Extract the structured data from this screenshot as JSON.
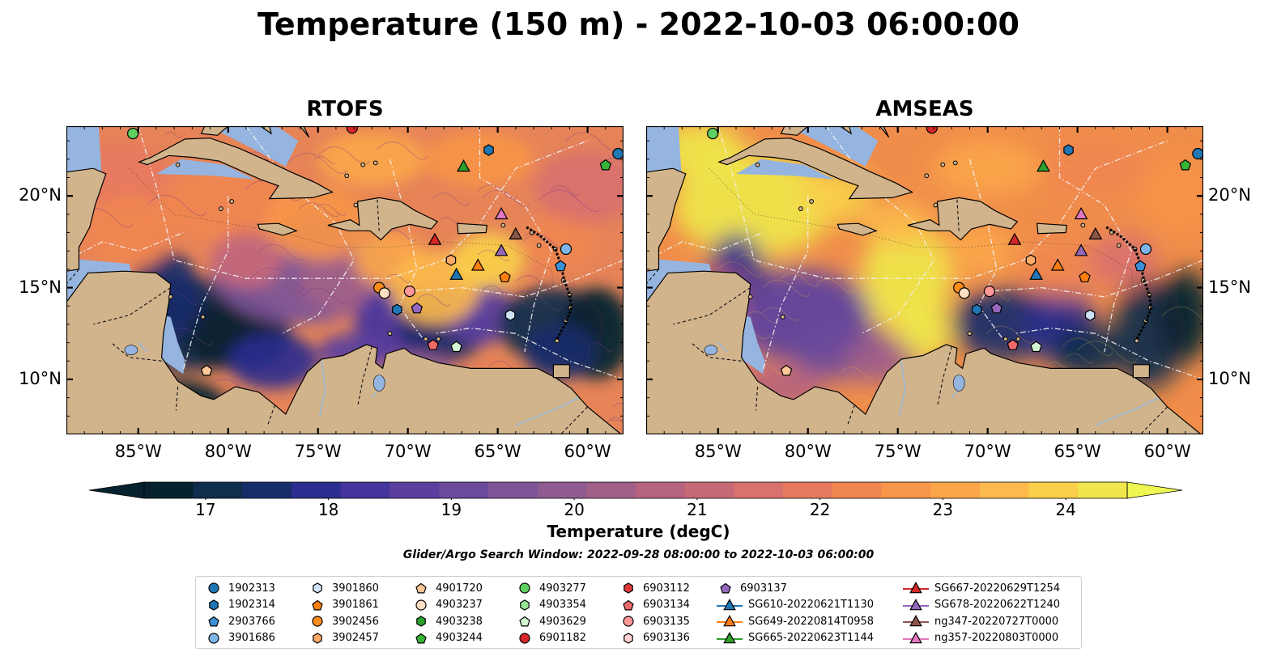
{
  "title": "Temperature (150 m) - 2022-10-03 06:00:00",
  "panels": [
    {
      "title": "RTOFS",
      "style": "rtofs"
    },
    {
      "title": "AMSEAS",
      "style": "amseas"
    }
  ],
  "lat_ticks": [
    {
      "lat": 20,
      "label": "20°N"
    },
    {
      "lat": 15,
      "label": "15°N"
    },
    {
      "lat": 10,
      "label": "10°N"
    }
  ],
  "lon_ticks": [
    {
      "lon": -85,
      "label": "85°W"
    },
    {
      "lon": -80,
      "label": "80°W"
    },
    {
      "lon": -75,
      "label": "75°W"
    },
    {
      "lon": -70,
      "label": "70°W"
    },
    {
      "lon": -65,
      "label": "65°W"
    },
    {
      "lon": -60,
      "label": "60°W"
    }
  ],
  "map_extent": {
    "lon_min": -89,
    "lon_max": -58,
    "lat_min": 7,
    "lat_max": 23.8
  },
  "colorbar": {
    "label": "Temperature (degC)",
    "min": 16.5,
    "max": 24.5,
    "ticks": [
      "17",
      "18",
      "19",
      "20",
      "21",
      "22",
      "23",
      "24"
    ],
    "colors": [
      "#06222f",
      "#0f2d4d",
      "#172d6a",
      "#2b2e8e",
      "#44349c",
      "#5a3f9f",
      "#6b4a9c",
      "#7c5497",
      "#8f5b90",
      "#a25f88",
      "#b6637f",
      "#c86978",
      "#d9716c",
      "#e77a5e",
      "#f08650",
      "#f79548",
      "#fba64a",
      "#fcb94c",
      "#f9cf4b",
      "#efe74b"
    ],
    "over_color": "#eef751",
    "under_color": "#06222f"
  },
  "search_window": "Glider/Argo Search Window: 2022-09-28 08:00:00 to 2022-10-03 06:00:00",
  "legend": [
    {
      "label": "1902313",
      "marker": "circle",
      "color": "#1f77b4"
    },
    {
      "label": "1902314",
      "marker": "hexagon",
      "color": "#1f77b4"
    },
    {
      "label": "2903766",
      "marker": "pentagon",
      "color": "#3b8fd6"
    },
    {
      "label": "3901686",
      "marker": "circle",
      "color": "#7fb6e8"
    },
    {
      "label": "3901860",
      "marker": "hexagon",
      "color": "#cfe3f7"
    },
    {
      "label": "3901861",
      "marker": "pentagon",
      "color": "#ff7f0e"
    },
    {
      "label": "3902456",
      "marker": "circle",
      "color": "#ff8c1a"
    },
    {
      "label": "3902457",
      "marker": "hexagon",
      "color": "#ffab66"
    },
    {
      "label": "4901720",
      "marker": "pentagon",
      "color": "#ffc899"
    },
    {
      "label": "4903237",
      "marker": "circle",
      "color": "#ffe0c2"
    },
    {
      "label": "4903238",
      "marker": "hexagon",
      "color": "#2ca02c"
    },
    {
      "label": "4903244",
      "marker": "pentagon",
      "color": "#37b537"
    },
    {
      "label": "4903277",
      "marker": "circle",
      "color": "#5fcf5f"
    },
    {
      "label": "4903354",
      "marker": "hexagon",
      "color": "#98e698"
    },
    {
      "label": "4903629",
      "marker": "pentagon",
      "color": "#d2f5d2"
    },
    {
      "label": "6901182",
      "marker": "circle",
      "color": "#d62728"
    },
    {
      "label": "6903112",
      "marker": "hexagon",
      "color": "#e0393a"
    },
    {
      "label": "6903134",
      "marker": "pentagon",
      "color": "#f06a6a"
    },
    {
      "label": "6903135",
      "marker": "circle",
      "color": "#ff9896"
    },
    {
      "label": "6903136",
      "marker": "hexagon",
      "color": "#ffd1d0"
    },
    {
      "label": "6903137",
      "marker": "pentagon",
      "color": "#9467bd"
    },
    {
      "label": "SG610-20220621T1130",
      "marker": "triangle-line",
      "color": "#1f77b4"
    },
    {
      "label": "SG649-20220814T0958",
      "marker": "triangle-line",
      "color": "#ff7f0e"
    },
    {
      "label": "SG665-20220623T1144",
      "marker": "triangle-line",
      "color": "#2ca02c"
    },
    {
      "label": "SG667-20220629T1254",
      "marker": "triangle-line",
      "color": "#d62728"
    },
    {
      "label": "SG678-20220622T1240",
      "marker": "triangle-line",
      "color": "#9467bd"
    },
    {
      "label": "ng347-20220727T0000",
      "marker": "triangle-line",
      "color": "#8c564b"
    },
    {
      "label": "ng357-20220803T0000",
      "marker": "triangle-line",
      "color": "#e377c2"
    }
  ],
  "observations": [
    {
      "label": "4903277",
      "lon": -85.3,
      "lat": 23.4,
      "marker": "circle",
      "color": "#5fcf5f"
    },
    {
      "label": "6901182",
      "lon": -73.1,
      "lat": 23.7,
      "marker": "circle",
      "color": "#d62728"
    },
    {
      "label": "1902314",
      "lon": -65.5,
      "lat": 22.5,
      "marker": "hexagon",
      "color": "#1f77b4"
    },
    {
      "label": "SG665-20220623T1144",
      "lon": -66.9,
      "lat": 21.6,
      "marker": "triangle",
      "color": "#2ca02c"
    },
    {
      "label": "4903244",
      "lon": -59.0,
      "lat": 21.7,
      "marker": "pentagon",
      "color": "#37b537"
    },
    {
      "label": "1902313",
      "lon": -58.3,
      "lat": 22.3,
      "marker": "circle",
      "color": "#1f77b4"
    },
    {
      "label": "ng357-20220803T0000",
      "lon": -64.8,
      "lat": 19.0,
      "marker": "triangle",
      "color": "#e377c2"
    },
    {
      "label": "ng347-20220727T0000",
      "lon": -64.0,
      "lat": 17.9,
      "marker": "triangle",
      "color": "#8c564b"
    },
    {
      "label": "SG667-20220629T1254",
      "lon": -68.5,
      "lat": 17.6,
      "marker": "triangle",
      "color": "#d62728"
    },
    {
      "label": "SG678-20220622T1240",
      "lon": -64.8,
      "lat": 17.0,
      "marker": "triangle",
      "color": "#9467bd"
    },
    {
      "label": "3901686",
      "lon": -61.2,
      "lat": 17.1,
      "marker": "circle",
      "color": "#7fb6e8"
    },
    {
      "label": "2903766",
      "lon": -61.5,
      "lat": 16.2,
      "marker": "pentagon",
      "color": "#3b8fd6"
    },
    {
      "label": "3902457",
      "lon": -67.6,
      "lat": 16.5,
      "marker": "hexagon",
      "color": "#ffab66"
    },
    {
      "label": "SG649-20220814T0958",
      "lon": -66.1,
      "lat": 16.2,
      "marker": "triangle",
      "color": "#ff7f0e"
    },
    {
      "label": "SG610-20220621T1130",
      "lon": -67.3,
      "lat": 15.7,
      "marker": "triangle",
      "color": "#1f77b4"
    },
    {
      "label": "3901861",
      "lon": -64.6,
      "lat": 15.6,
      "marker": "pentagon",
      "color": "#ff7f0e"
    },
    {
      "label": "3902456",
      "lon": -71.6,
      "lat": 15.0,
      "marker": "circle",
      "color": "#ff8c1a"
    },
    {
      "label": "4903237",
      "lon": -71.3,
      "lat": 14.7,
      "marker": "circle",
      "color": "#ffe0c2"
    },
    {
      "label": "6903135",
      "lon": -69.9,
      "lat": 14.8,
      "marker": "circle",
      "color": "#ff9896"
    },
    {
      "label": "1902314",
      "lon": -70.6,
      "lat": 13.8,
      "marker": "hexagon",
      "color": "#1f77b4"
    },
    {
      "label": "6903137",
      "lon": -69.5,
      "lat": 13.9,
      "marker": "pentagon",
      "color": "#9467bd"
    },
    {
      "label": "3901860",
      "lon": -64.3,
      "lat": 13.5,
      "marker": "hexagon",
      "color": "#cfe3f7"
    },
    {
      "label": "6903134",
      "lon": -68.6,
      "lat": 11.9,
      "marker": "pentagon",
      "color": "#f06a6a"
    },
    {
      "label": "4903629",
      "lon": -67.3,
      "lat": 11.8,
      "marker": "pentagon",
      "color": "#d2f5d2"
    },
    {
      "label": "4901720",
      "lon": -81.2,
      "lat": 10.5,
      "marker": "pentagon",
      "color": "#ffc899"
    }
  ]
}
